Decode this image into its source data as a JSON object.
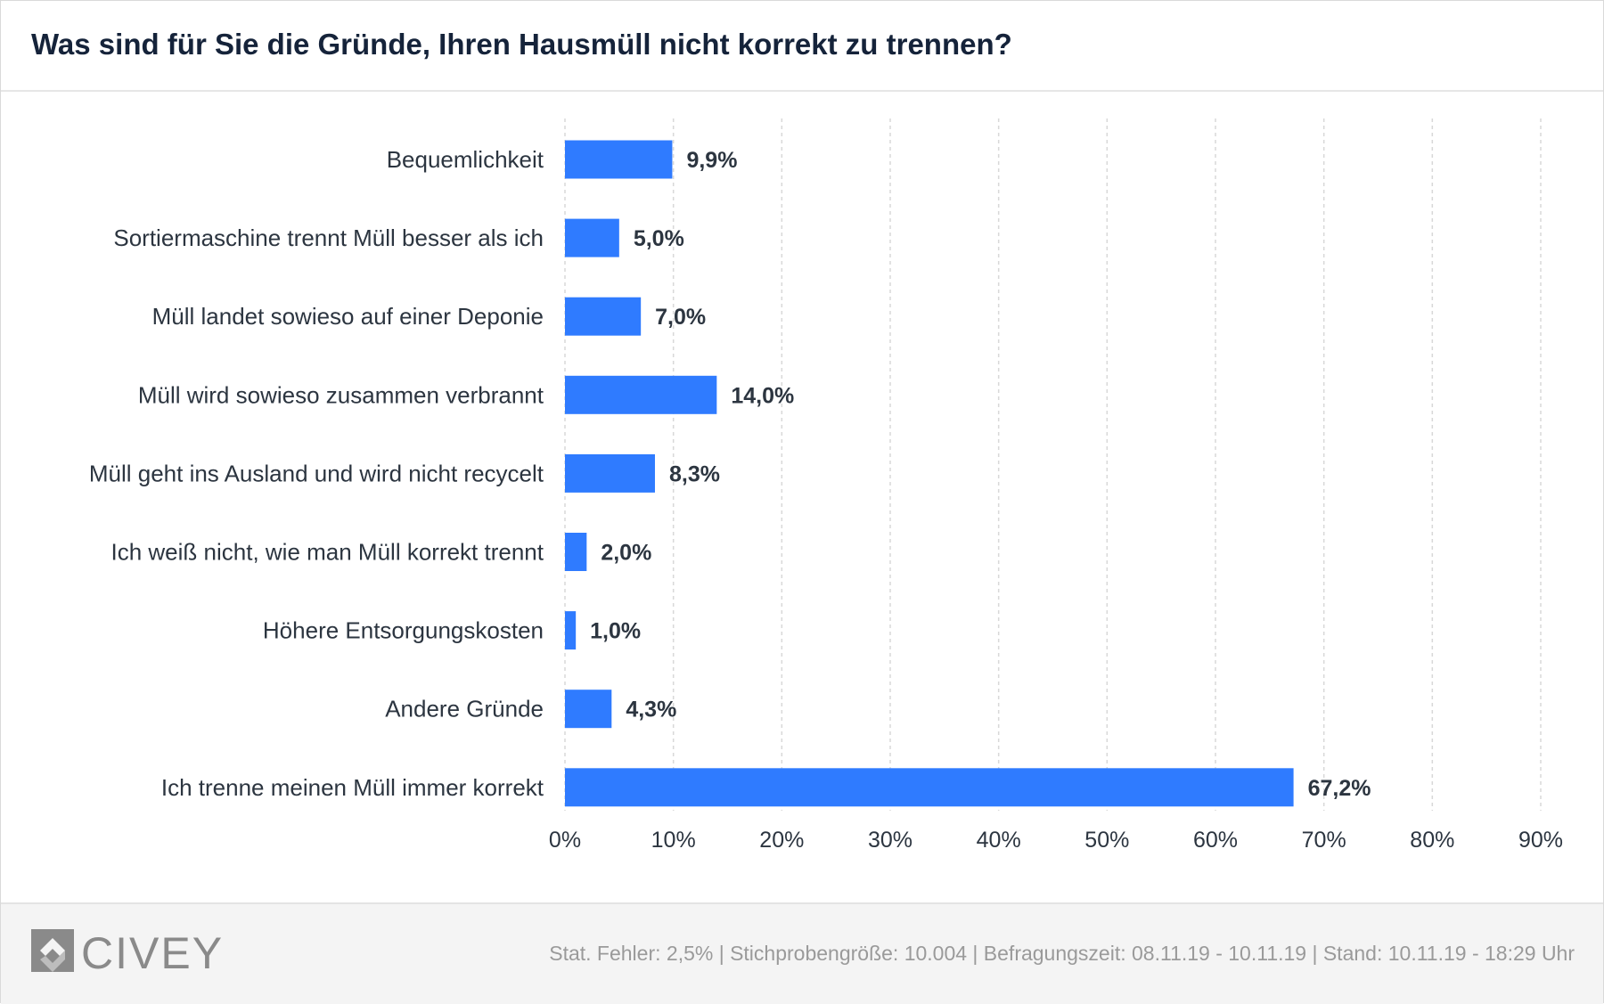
{
  "header": {
    "title": "Was sind für Sie die Gründe, Ihren Hausmüll nicht korrekt zu trennen?"
  },
  "chart_data": {
    "type": "bar",
    "orientation": "horizontal",
    "title": "Was sind für Sie die Gründe, Ihren Hausmüll nicht korrekt zu trennen?",
    "categories": [
      "Bequemlichkeit",
      "Sortiermaschine trennt Müll besser als ich",
      "Müll landet sowieso auf einer Deponie",
      "Müll wird sowieso zusammen verbrannt",
      "Müll geht ins Ausland und wird nicht recycelt",
      "Ich weiß nicht, wie man Müll korrekt trennt",
      "Höhere Entsorgungskosten",
      "Andere Gründe",
      "Ich trenne meinen Müll immer korrekt"
    ],
    "values": [
      9.9,
      5.0,
      7.0,
      14.0,
      8.3,
      2.0,
      1.0,
      4.3,
      67.2
    ],
    "value_labels": [
      "9,9%",
      "5,0%",
      "7,0%",
      "14,0%",
      "8,3%",
      "2,0%",
      "1,0%",
      "4,3%",
      "67,2%"
    ],
    "xlim": [
      0,
      90
    ],
    "ticks": [
      0,
      10,
      20,
      30,
      40,
      50,
      60,
      70,
      80,
      90
    ],
    "tick_labels": [
      "0%",
      "10%",
      "20%",
      "30%",
      "40%",
      "50%",
      "60%",
      "70%",
      "80%",
      "90%"
    ],
    "grid": "vertical dashed",
    "bar_color": "#2f7bff",
    "xlabel": "",
    "ylabel": ""
  },
  "footer": {
    "logo_text": "CIVEY",
    "logo_icon": "civey-logo-icon",
    "note": "Stat. Fehler: 2,5% | Stichprobengröße: 10.004 | Befragungszeit: 08.11.19 - 10.11.19 | Stand: 10.11.19 - 18:29 Uhr"
  },
  "colors": {
    "title": "#15233a",
    "text": "#2c3540",
    "bar": "#2f7bff",
    "grid": "#d8d8d8",
    "footer_bg": "#f4f4f4",
    "footer_text": "#9a9a9a",
    "logo": "#8a8a8a"
  }
}
